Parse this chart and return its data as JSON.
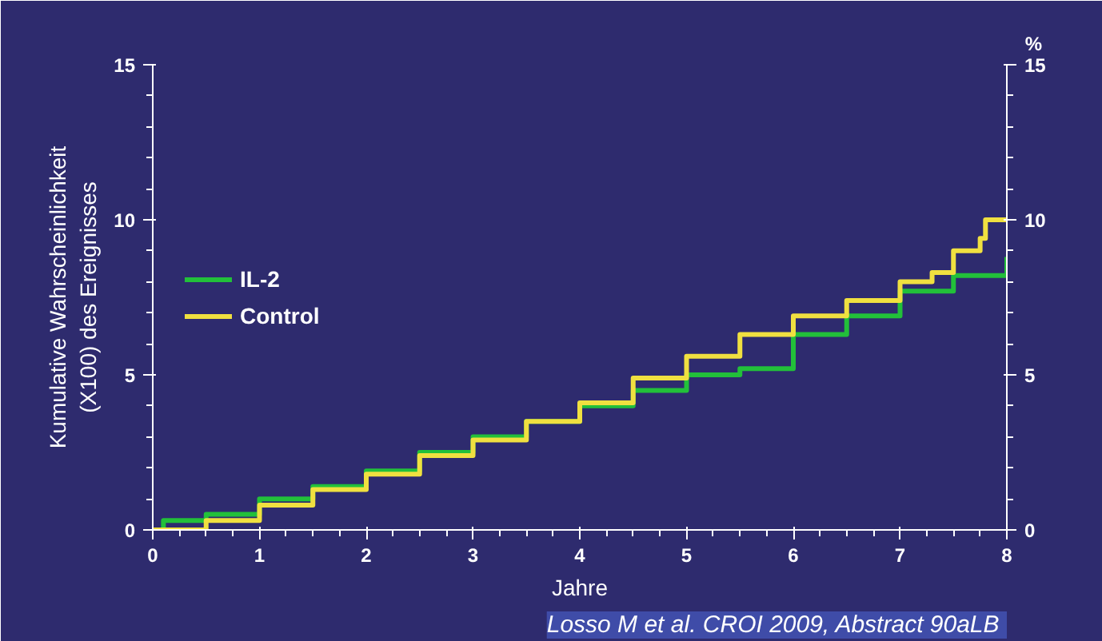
{
  "chart_data": {
    "type": "step",
    "xlabel": "Jahre",
    "ylabel": "Kumulative Wahrscheinlichkeit\n(X100) des Ereignisses",
    "y2label": "%",
    "xlim": [
      0,
      8
    ],
    "xticks": [
      0,
      1,
      2,
      3,
      4,
      5,
      6,
      7,
      8
    ],
    "ylim": [
      0,
      15
    ],
    "yticks": [
      0,
      5,
      10,
      15
    ],
    "y2lim": [
      0,
      15
    ],
    "y2ticks": [
      0,
      5,
      10,
      15
    ],
    "grid": false,
    "legend": "left",
    "annotations": [
      "Losso M et al. CROI  2009, Abstract 90aLB"
    ],
    "series": [
      {
        "name": "IL-2",
        "color": "#22c03a",
        "x": [
          0,
          0.1,
          0.5,
          1,
          1.5,
          2,
          2.5,
          3,
          3.5,
          4,
          4.5,
          5,
          5.5,
          6,
          6.5,
          7,
          7.5,
          8
        ],
        "values": [
          0,
          0.3,
          0.5,
          1.0,
          1.4,
          1.9,
          2.5,
          3.0,
          3.5,
          4.0,
          4.5,
          5.0,
          5.2,
          6.3,
          6.9,
          7.7,
          8.2,
          8.8
        ]
      },
      {
        "name": "Control",
        "color": "#f0e040",
        "x": [
          0,
          0.5,
          1,
          1.5,
          2,
          2.5,
          3,
          3.5,
          4,
          4.5,
          5,
          5.5,
          6,
          6.5,
          7,
          7.3,
          7.5,
          7.75,
          7.8,
          8
        ],
        "values": [
          0,
          0.3,
          0.8,
          1.3,
          1.8,
          2.4,
          2.9,
          3.5,
          4.1,
          4.9,
          5.6,
          6.3,
          6.9,
          7.4,
          8.0,
          8.3,
          9.0,
          9.4,
          10.0,
          10.0
        ]
      }
    ]
  }
}
